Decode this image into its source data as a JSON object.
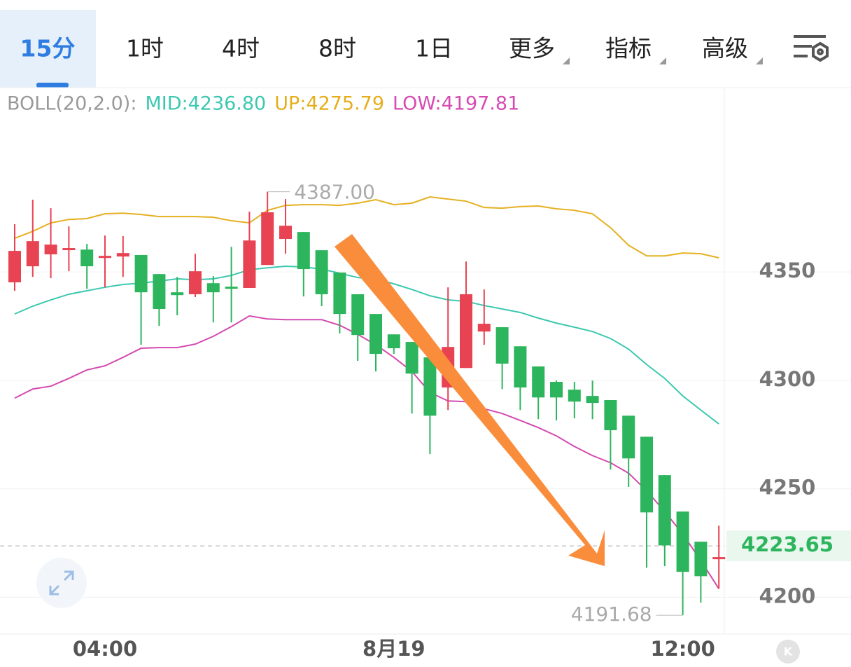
{
  "toolbar": {
    "tabs": [
      {
        "label": "15分",
        "selected": true
      },
      {
        "label": "1时"
      },
      {
        "label": "4时"
      },
      {
        "label": "8时"
      },
      {
        "label": "1日"
      },
      {
        "label": "更多",
        "menu": true
      },
      {
        "label": "指标",
        "menu": true
      },
      {
        "label": "高级",
        "menu": true
      }
    ]
  },
  "chart_data": {
    "type": "candlestick",
    "legend": {
      "label": "BOLL(20,2.0):",
      "items": [
        {
          "text": "MID:4236.80",
          "color": "#3cc8b0"
        },
        {
          "text": "UP:4275.79",
          "color": "#e5ae1c"
        },
        {
          "text": "LOW:4197.81",
          "color": "#d64bb2"
        }
      ]
    },
    "categories": [
      null,
      null,
      null,
      null,
      null,
      "04:00",
      null,
      null,
      null,
      null,
      null,
      null,
      null,
      null,
      null,
      null,
      null,
      null,
      null,
      null,
      null,
      "8月19",
      null,
      null,
      null,
      null,
      null,
      null,
      null,
      null,
      null,
      null,
      null,
      null,
      null,
      null,
      null,
      "12:00",
      null,
      null
    ],
    "open": [
      4345.2,
      4352.6,
      4358.1,
      4360.3,
      4360.3,
      4356.5,
      4357.1,
      4357.8,
      4349.0,
      4340.6,
      4339.7,
      4344.8,
      4343.2,
      4342.6,
      4353.2,
      4365.2,
      4368.4,
      4360.0,
      4349.7,
      4339.7,
      4330.6,
      4321.2,
      4317.7,
      4310.6,
      4296.7,
      4305.7,
      4322.5,
      4324.5,
      4315.7,
      4306.4,
      4299.3,
      4295.7,
      4292.8,
      4290.9,
      4283.7,
      4274.0,
      4256.3,
      4239.5,
      4225.6,
      4217.8
    ],
    "high": [
      4372.0,
      4383.3,
      4379.4,
      4371.0,
      4362.9,
      4366.8,
      4366.5,
      4357.8,
      4349.0,
      4347.7,
      4358.4,
      4348.1,
      4361.6,
      4377.8,
      4387,
      4383.6,
      4368.4,
      4360.0,
      4349.7,
      4339.7,
      4330.6,
      4321.2,
      4317.7,
      4310.6,
      4342.9,
      4354.8,
      4341.9,
      4324.5,
      4315.7,
      4306.4,
      4299.9,
      4299.3,
      4299.9,
      4290.9,
      4283.7,
      4274.0,
      4256.3,
      4239.5,
      4225.6,
      4233.0
    ],
    "low": [
      4341.3,
      4347.7,
      4347.1,
      4350.3,
      4342.2,
      4342.9,
      4347.7,
      4316.4,
      4325.1,
      4330.0,
      4338.4,
      4326.7,
      4326.7,
      4342.6,
      4353.2,
      4358.4,
      4338.7,
      4334.2,
      4321.6,
      4309.0,
      4304.1,
      4312.2,
      4284.7,
      4266.0,
      4286.3,
      4305.7,
      4316.4,
      4296.0,
      4286.3,
      4282.1,
      4281.5,
      4282.5,
      4282.1,
      4258.9,
      4250.8,
      4213.6,
      4214.3,
      4191.68,
      4197.5,
      4203.9
    ],
    "close": [
      4359.7,
      4364.2,
      4362.6,
      4361.0,
      4352.6,
      4357.4,
      4358.7,
      4340.6,
      4332.9,
      4339.3,
      4350.3,
      4340.6,
      4342.2,
      4364.5,
      4377.5,
      4371.3,
      4351.3,
      4339.7,
      4330.6,
      4320.9,
      4312.2,
      4314.8,
      4303.1,
      4283.7,
      4315.4,
      4339.7,
      4326.1,
      4307.7,
      4296.7,
      4292.1,
      4292.1,
      4290.2,
      4289.6,
      4277.0,
      4264.0,
      4239.1,
      4223.9,
      4211.7,
      4209.7,
      4218.5
    ],
    "up_color": "#e84352",
    "down_color": "#2db55d",
    "lines": [
      {
        "color": "#e5b021",
        "values": [
          4365.5,
          4368.7,
          4372.6,
          4374.2,
          4374.6,
          4376.8,
          4377.1,
          4376.5,
          4375.5,
          4375.5,
          4375.5,
          4375.2,
          4373.6,
          4372.6,
          4378.4,
          4380.7,
          4381.0,
          4381.0,
          4380.7,
          4381.7,
          4383.3,
          4381.0,
          4381.7,
          4384.6,
          4383.6,
          4382.6,
          4379.7,
          4379.4,
          4380.1,
          4380.4,
          4379.1,
          4378.4,
          4376.8,
          4370.4,
          4362.3,
          4357.4,
          4357.4,
          4358.7,
          4358.4,
          4356.5
        ]
      },
      {
        "color": "#3cc8b0",
        "values": [
          4330.6,
          4334.2,
          4337.1,
          4339.7,
          4341.3,
          4342.9,
          4344.2,
          4344.8,
          4345.8,
          4346.8,
          4346.4,
          4346.8,
          4348.4,
          4351.0,
          4351.9,
          4352.6,
          4352.3,
          4351.3,
          4349.4,
          4347.4,
          4346.8,
          4344.5,
          4341.9,
          4339.0,
          4337.1,
          4336.4,
          4334.5,
          4332.9,
          4331.3,
          4328.7,
          4326.4,
          4324.5,
          4322.5,
          4319.3,
          4314.4,
          4307.3,
          4300.9,
          4292.8,
          4286.3,
          4279.9
        ]
      },
      {
        "color": "#d44ab0",
        "values": [
          4291.8,
          4296.0,
          4297.3,
          4300.9,
          4304.8,
          4306.7,
          4310.6,
          4314.8,
          4315.1,
          4315.1,
          4316.7,
          4320.3,
          4324.8,
          4329.7,
          4328.3,
          4328.0,
          4328.0,
          4328.0,
          4325.4,
          4321.2,
          4316.4,
          4310.6,
          4304.1,
          4294.4,
          4290.5,
          4290.2,
          4286.9,
          4284.7,
          4281.5,
          4278.2,
          4274.4,
          4269.5,
          4265.3,
          4262.0,
          4257.2,
          4249.1,
          4239.5,
          4229.1,
          4216.9,
          4203.9
        ]
      }
    ],
    "annotations": [
      {
        "value": 4387,
        "label": "4387.00"
      },
      {
        "value": 4191.68,
        "label": "4191.68"
      }
    ],
    "last_price": 4223.65,
    "ylim": [
      4183,
      4435
    ],
    "yticks": [
      4350,
      4300,
      4250,
      4200
    ],
    "grid": true
  }
}
